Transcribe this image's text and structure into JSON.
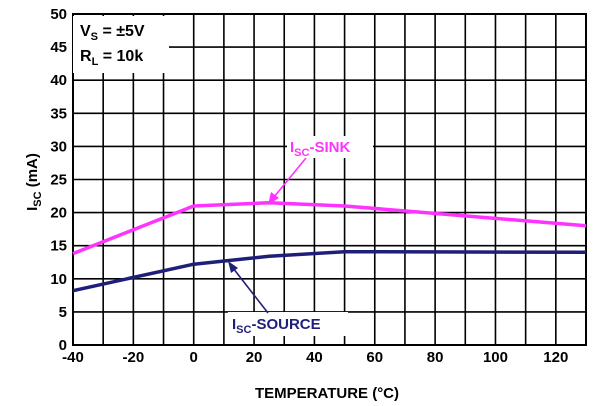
{
  "chart_data": {
    "type": "line",
    "xlabel": "TEMPERATURE (°C)",
    "ylabel": {
      "main": "I",
      "sub": "SC",
      "rest": " (mA)"
    },
    "xlim": [
      -40,
      130
    ],
    "ylim": [
      0,
      50
    ],
    "x_ticks": [
      -40,
      -20,
      0,
      20,
      40,
      60,
      80,
      100,
      120
    ],
    "y_ticks": [
      0,
      5,
      10,
      15,
      20,
      25,
      30,
      35,
      40,
      45,
      50
    ],
    "x_grid_step": 10,
    "y_grid_step": 5,
    "grid": true,
    "conditions": [
      {
        "main": "V",
        "sub": "S",
        "rest": " = ±5V"
      },
      {
        "main": "R",
        "sub": "L",
        "rest": " = 10k"
      }
    ],
    "series": [
      {
        "name": {
          "main": "I",
          "sub": "SC",
          "rest": "-SINK"
        },
        "color": "#ff33ff",
        "x": [
          -40,
          0,
          25,
          50,
          130
        ],
        "y": [
          13.8,
          21,
          21.5,
          21,
          18
        ]
      },
      {
        "name": {
          "main": "I",
          "sub": "SC",
          "rest": "-SOURCE"
        },
        "color": "#1f1f7a",
        "x": [
          -40,
          0,
          25,
          50,
          130
        ],
        "y": [
          8.2,
          12.2,
          13.4,
          14.1,
          14
        ]
      }
    ]
  }
}
